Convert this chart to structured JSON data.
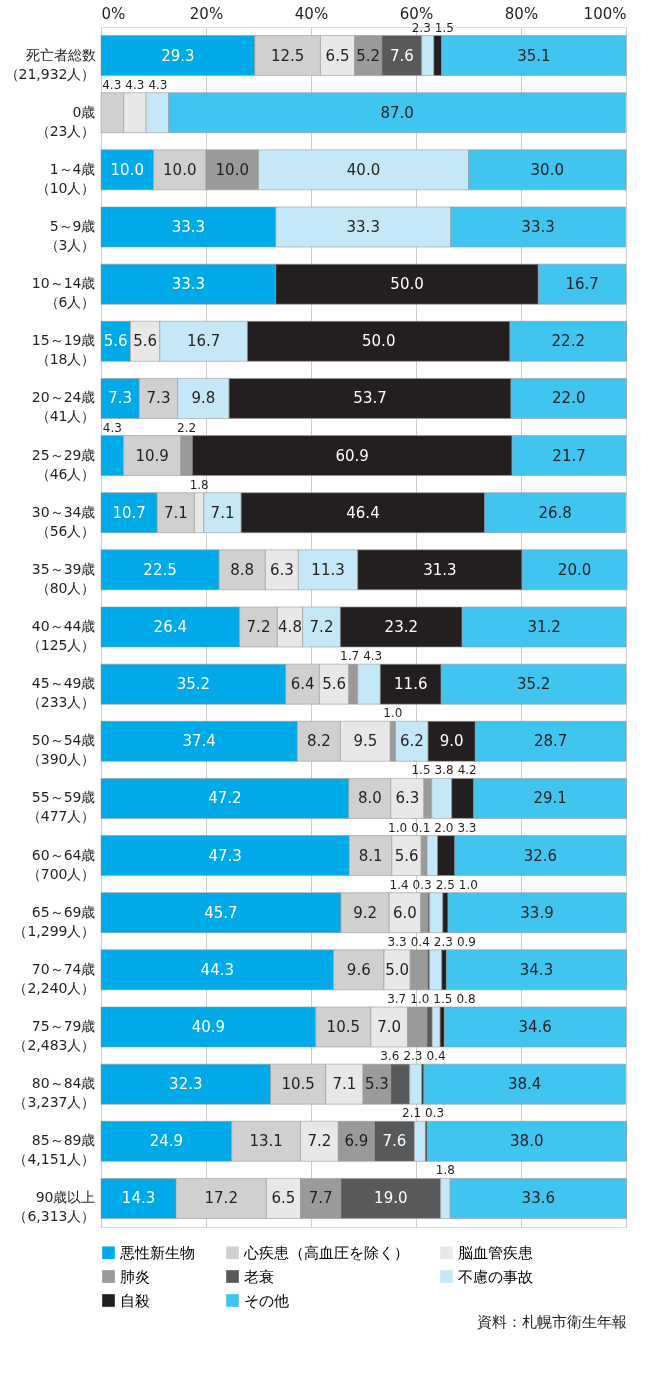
{
  "chart_data": {
    "type": "bar",
    "orientation": "horizontal",
    "stacked": true,
    "grid": "x",
    "legend": "bottom",
    "categories": [
      "死亡者総数（21,932人）",
      "0歳（23人）",
      "1～4歳（10人）",
      "5～9歳（3人）",
      "10～14歳（6人）",
      "15～19歳（18人）",
      "20～24歳（41人）",
      "25～29歳（46人）",
      "30～34歳（56人）",
      "35～39歳（80人）",
      "40～44歳（125人）",
      "45～49歳（233人）",
      "50～54歳（390人）",
      "55～59歳（477人）",
      "60～64歳（700人）",
      "65～69歳（1,299人）",
      "70～74歳（2,240人）",
      "75～79歳（2,483人）",
      "80～84歳（3,237人）",
      "85～89歳（4,151人）",
      "90歳以上（6,313人）"
    ],
    "xlim": [
      0,
      100
    ],
    "xticks": [
      {
        "value": 0,
        "label": "0%"
      },
      {
        "value": 20,
        "label": "20%"
      },
      {
        "value": 40,
        "label": "40%"
      },
      {
        "value": 60,
        "label": "60%"
      },
      {
        "value": 80,
        "label": "80%"
      },
      {
        "value": 100,
        "label": "100%"
      }
    ],
    "series": [
      {
        "name": "悪性新生物",
        "color": "#00a9e8",
        "values": [
          29.3,
          null,
          10.0,
          33.3,
          33.3,
          5.6,
          7.3,
          4.3,
          10.7,
          22.5,
          26.4,
          35.2,
          37.4,
          47.2,
          47.3,
          45.7,
          44.3,
          40.9,
          32.3,
          24.9,
          14.3
        ],
        "value_labels": [
          "29.3",
          null,
          "10.0",
          "33.3",
          "33.3",
          "5.6",
          "7.3",
          "4.3",
          "10.7",
          "22.5",
          "26.4",
          "35.2",
          "37.4",
          "47.2",
          "47.3",
          "45.7",
          "44.3",
          "40.9",
          "32.3",
          "24.9",
          "14.3"
        ]
      },
      {
        "name": "心疾患（高血圧を除く）",
        "color": "#d0d0d0",
        "values": [
          12.5,
          4.3,
          10.0,
          null,
          null,
          null,
          7.3,
          10.9,
          7.1,
          8.8,
          7.2,
          6.4,
          8.2,
          8.0,
          8.1,
          9.2,
          9.6,
          10.5,
          10.5,
          13.1,
          17.2
        ],
        "value_labels": [
          "12.5",
          "4.3",
          "10.0",
          null,
          null,
          null,
          "7.3",
          "10.9",
          "7.1",
          "8.8",
          "7.2",
          "6.4",
          "8.2",
          "8.0",
          "8.1",
          "9.2",
          "9.6",
          "10.5",
          "10.5",
          "13.1",
          "17.2"
        ]
      },
      {
        "name": "脳血管疾患",
        "color": "#e8e8e8",
        "values": [
          6.5,
          4.3,
          null,
          null,
          null,
          5.6,
          null,
          null,
          1.8,
          6.3,
          4.8,
          5.6,
          9.5,
          6.3,
          5.6,
          6.0,
          5.0,
          7.0,
          7.1,
          7.2,
          6.5
        ],
        "value_labels": [
          "6.5",
          "4.3",
          null,
          null,
          null,
          "5.6",
          null,
          null,
          "1.8",
          "6.3",
          "4.8",
          "5.6",
          "9.5",
          "6.3",
          "5.6",
          "6.0",
          "5.0",
          "7.0",
          "7.1",
          "7.2",
          "6.5"
        ]
      },
      {
        "name": "肺炎",
        "color": "#9a9a9a",
        "values": [
          5.2,
          null,
          10.0,
          null,
          null,
          null,
          null,
          2.2,
          null,
          null,
          null,
          1.7,
          1.0,
          1.5,
          1.0,
          1.4,
          3.3,
          3.7,
          5.3,
          6.9,
          7.7
        ],
        "value_labels": [
          "5.2",
          null,
          "10.0",
          null,
          null,
          null,
          null,
          "2.2",
          null,
          null,
          null,
          "1.7",
          "1.0",
          "1.5",
          "1.0",
          "1.4",
          "3.3",
          "3.7",
          "5.3",
          "6.9",
          "7.7"
        ]
      },
      {
        "name": "老衰",
        "color": "#58595b",
        "values": [
          7.6,
          null,
          null,
          null,
          null,
          null,
          null,
          null,
          null,
          null,
          null,
          null,
          null,
          null,
          0.1,
          0.3,
          0.4,
          1.0,
          3.6,
          7.6,
          19.0
        ],
        "value_labels": [
          "7.6",
          null,
          null,
          null,
          null,
          null,
          null,
          null,
          null,
          null,
          null,
          null,
          null,
          null,
          "0.1",
          "0.3",
          "0.4",
          "1.0",
          "3.6",
          "7.6",
          "19.0"
        ]
      },
      {
        "name": "不慮の事故",
        "color": "#c5e8f8",
        "values": [
          2.3,
          4.3,
          40.0,
          33.3,
          null,
          16.7,
          9.8,
          null,
          7.1,
          11.3,
          7.2,
          4.3,
          6.2,
          3.8,
          2.0,
          2.5,
          2.3,
          1.5,
          2.3,
          2.1,
          1.8
        ],
        "value_labels": [
          "2.3",
          "4.3",
          "40.0",
          "33.3",
          null,
          "16.7",
          "9.8",
          null,
          "7.1",
          "11.3",
          "7.2",
          "4.3",
          "6.2",
          "3.8",
          "2.0",
          "2.5",
          "2.3",
          "1.5",
          "2.3",
          "2.1",
          "1.8"
        ]
      },
      {
        "name": "自殺",
        "color": "#231f20",
        "values": [
          1.5,
          null,
          null,
          null,
          50.0,
          50.0,
          53.7,
          60.9,
          46.4,
          31.3,
          23.2,
          11.6,
          9.0,
          4.2,
          3.3,
          1.0,
          0.9,
          0.8,
          0.4,
          0.3,
          null
        ],
        "value_labels": [
          "1.5",
          null,
          null,
          null,
          "50.0",
          "50.0",
          "53.7",
          "60.9",
          "46.4",
          "31.3",
          "23.2",
          "11.6",
          "9.0",
          "4.2",
          "3.3",
          "1.0",
          "0.9",
          "0.8",
          "0.4",
          "0.3",
          null
        ]
      },
      {
        "name": "その他",
        "color": "#40c4f0",
        "values": [
          35.1,
          87.0,
          30.0,
          33.3,
          16.7,
          22.2,
          22.0,
          21.7,
          26.8,
          20.0,
          31.2,
          35.2,
          28.7,
          29.1,
          32.6,
          33.9,
          34.3,
          34.6,
          38.4,
          38.0,
          33.6
        ],
        "value_labels": [
          "35.1",
          "87.0",
          "30.0",
          "33.3",
          "16.7",
          "22.2",
          "22.0",
          "21.7",
          "26.8",
          "20.0",
          "31.2",
          "35.2",
          "28.7",
          "29.1",
          "32.6",
          "33.9",
          "34.3",
          "34.6",
          "38.4",
          "38.0",
          "33.6"
        ]
      }
    ],
    "annotations": [
      "資料：札幌市衛生年報"
    ]
  }
}
